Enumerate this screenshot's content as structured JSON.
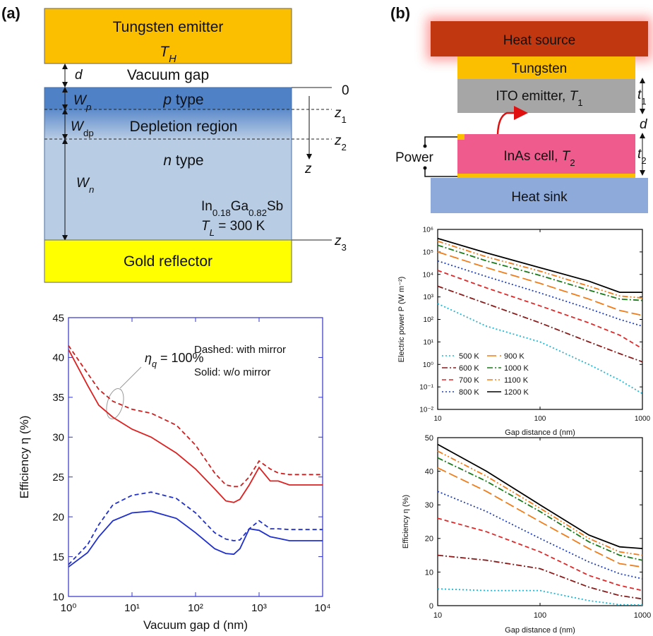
{
  "panel_labels": [
    "(a)",
    "(b)"
  ],
  "diagram_a": {
    "emitter": "Tungsten emitter",
    "emitter_temp": [
      "T",
      "H"
    ],
    "gap_symbol": "d",
    "gap": "Vacuum gap",
    "p_width": [
      "W",
      "p"
    ],
    "p_layer": [
      "p",
      " type"
    ],
    "dp_width": [
      "W",
      "dp"
    ],
    "depletion": "Depletion region",
    "n_width": [
      "W",
      "n"
    ],
    "n_layer": [
      "n",
      " type"
    ],
    "depth_axis": "z",
    "depth_ticks": [
      "0",
      [
        "z",
        "1"
      ],
      [
        "z",
        "2"
      ],
      [
        "z",
        "3"
      ]
    ],
    "material": [
      "In",
      "0.18",
      "Ga",
      "0.82",
      "Sb"
    ],
    "lattice_temp": [
      "T",
      "L",
      " = 300 K"
    ],
    "reflector": "Gold reflector"
  },
  "diagram_b": {
    "source": "Heat source",
    "tungsten": "Tungsten",
    "emitter": [
      "ITO emitter, ",
      "T",
      "1"
    ],
    "gap": "d",
    "t1": [
      "t",
      "1"
    ],
    "t2": [
      "t",
      "2"
    ],
    "power": "Power",
    "cell": [
      "InAs cell, ",
      "T",
      "2"
    ],
    "sink": "Heat sink"
  },
  "chart_data": [
    {
      "type": "line",
      "xlabel": "Vacuum gap d (nm)",
      "ylabel": "Efficiency η (%)",
      "xlog": true,
      "frame_color": "#3333cc",
      "annotations": [
        [
          "η",
          "q",
          " = 100%"
        ],
        "Dashed: with mirror",
        "Solid: w/o mirror"
      ],
      "x": [
        1,
        2,
        3,
        5,
        10,
        20,
        50,
        100,
        200,
        300,
        400,
        500,
        700,
        1000,
        1500,
        2000,
        3000,
        10000
      ],
      "series": [
        {
          "color": "#cc2020",
          "style": "dashed",
          "values": [
            41.5,
            38,
            36,
            34.5,
            33.5,
            33,
            31.5,
            29,
            25.5,
            24,
            23.8,
            23.8,
            25,
            27,
            26,
            25.5,
            25.3,
            25.3
          ]
        },
        {
          "color": "#dd2020",
          "style": "solid",
          "values": [
            41,
            36.5,
            34,
            32.5,
            31,
            30,
            28,
            26,
            23.5,
            22,
            21.8,
            22.2,
            24,
            26.2,
            24.5,
            24.5,
            24,
            24
          ]
        },
        {
          "color": "#2030cc",
          "style": "dashed",
          "values": [
            14,
            16.5,
            19,
            21.5,
            22.7,
            23.1,
            22.3,
            20.5,
            18,
            17.2,
            17,
            17.1,
            18.5,
            19.5,
            18.5,
            18.5,
            18.4,
            18.4
          ]
        },
        {
          "color": "#2030cc",
          "style": "solid",
          "values": [
            13.7,
            15.5,
            17.5,
            19.5,
            20.5,
            20.7,
            19.8,
            18,
            16,
            15.4,
            15.3,
            16,
            18.5,
            18.3,
            17.5,
            17.3,
            17,
            17
          ]
        }
      ],
      "xlim": [
        1,
        10000
      ],
      "xticks": [
        {
          "value": 1,
          "label": "10⁰"
        },
        {
          "value": 10,
          "label": "10¹"
        },
        {
          "value": 100,
          "label": "10²"
        },
        {
          "value": 1000,
          "label": "10³"
        },
        {
          "value": 10000,
          "label": "10⁴"
        }
      ],
      "ylim": [
        10,
        45
      ],
      "yticks": [
        10,
        15,
        20,
        25,
        30,
        35,
        40,
        45
      ]
    },
    {
      "type": "line",
      "xlabel": "Gap distance d (nm)",
      "ylabel": "Electric power P (W m⁻²)",
      "xlog": true,
      "ylog": true,
      "frame_color": "#000000",
      "legend": "lower left",
      "x": [
        10,
        30,
        100,
        300,
        600,
        1000
      ],
      "series": [
        {
          "name": "500 K",
          "color": "#19b8d8",
          "style": "dotted",
          "values": [
            500,
            50,
            10,
            1,
            0.2,
            0.05
          ]
        },
        {
          "name": "600 K",
          "color": "#8b1a1a",
          "style": "dashdot",
          "values": [
            3000,
            500,
            70,
            10,
            3,
            1.3
          ]
        },
        {
          "name": "700 K",
          "color": "#e02828",
          "style": "dashed",
          "values": [
            15000,
            2500,
            400,
            70,
            20,
            5
          ]
        },
        {
          "name": "800 K",
          "color": "#1f3fbf",
          "style": "dotted",
          "values": [
            40000,
            8000,
            1500,
            300,
            100,
            50
          ]
        },
        {
          "name": "900 K",
          "color": "#f07d1a",
          "style": "longdash",
          "values": [
            100000,
            20000,
            4000,
            800,
            250,
            150
          ]
        },
        {
          "name": "1000 K",
          "color": "#1a7a1a",
          "style": "dashdot",
          "values": [
            200000,
            40000,
            9000,
            2000,
            800,
            700
          ]
        },
        {
          "name": "1100 K",
          "color": "#f07d1a",
          "style": "dashdotdot",
          "values": [
            300000,
            60000,
            14000,
            3000,
            1100,
            900
          ]
        },
        {
          "name": "1200 K",
          "color": "#000000",
          "style": "solid",
          "values": [
            400000,
            90000,
            20000,
            5000,
            1600,
            1600
          ]
        }
      ],
      "xlim": [
        10,
        1000
      ],
      "xticks": [
        10,
        100,
        1000
      ],
      "ylim": [
        0.01,
        1000000
      ],
      "yticks": [
        {
          "value": 0.01,
          "label": "10⁻²"
        },
        {
          "value": 0.1,
          "label": "10⁻¹"
        },
        {
          "value": 1,
          "label": "10⁰"
        },
        {
          "value": 10,
          "label": "10¹"
        },
        {
          "value": 100,
          "label": "10²"
        },
        {
          "value": 1000,
          "label": "10³"
        },
        {
          "value": 10000,
          "label": "10⁴"
        },
        {
          "value": 100000,
          "label": "10⁵"
        },
        {
          "value": 1000000,
          "label": "10⁶"
        }
      ]
    },
    {
      "type": "line",
      "xlabel": "Gap distance d (nm)",
      "ylabel": "Efficiency η (%)",
      "xlog": true,
      "frame_color": "#000000",
      "x": [
        10,
        30,
        100,
        300,
        600,
        1000
      ],
      "series": [
        {
          "color": "#19b8d8",
          "style": "dotted",
          "values": [
            5,
            4.5,
            4.5,
            1.5,
            0.3,
            0.2
          ]
        },
        {
          "color": "#8b1a1a",
          "style": "dashdot",
          "values": [
            15,
            13.5,
            11,
            5.5,
            3,
            2
          ]
        },
        {
          "color": "#e02828",
          "style": "dashed",
          "values": [
            26,
            22,
            16,
            9,
            6,
            4.5
          ]
        },
        {
          "color": "#1f3fbf",
          "style": "dotted",
          "values": [
            34,
            28,
            20,
            13,
            9.5,
            8
          ]
        },
        {
          "color": "#f07d1a",
          "style": "longdash",
          "values": [
            41,
            34,
            25,
            17,
            12.5,
            11.5
          ]
        },
        {
          "color": "#1a7a1a",
          "style": "dashdot",
          "values": [
            44,
            37,
            28,
            19,
            15,
            13.5
          ]
        },
        {
          "color": "#f07d1a",
          "style": "dashdotdot",
          "values": [
            46,
            38.5,
            29,
            20,
            16,
            15
          ]
        },
        {
          "color": "#000000",
          "style": "solid",
          "values": [
            48,
            40,
            30,
            21,
            17.5,
            17
          ]
        }
      ],
      "xlim": [
        10,
        1000
      ],
      "xticks": [
        10,
        100,
        1000
      ],
      "ylim": [
        0,
        50
      ],
      "yticks": [
        0,
        10,
        20,
        30,
        40,
        50
      ]
    }
  ]
}
